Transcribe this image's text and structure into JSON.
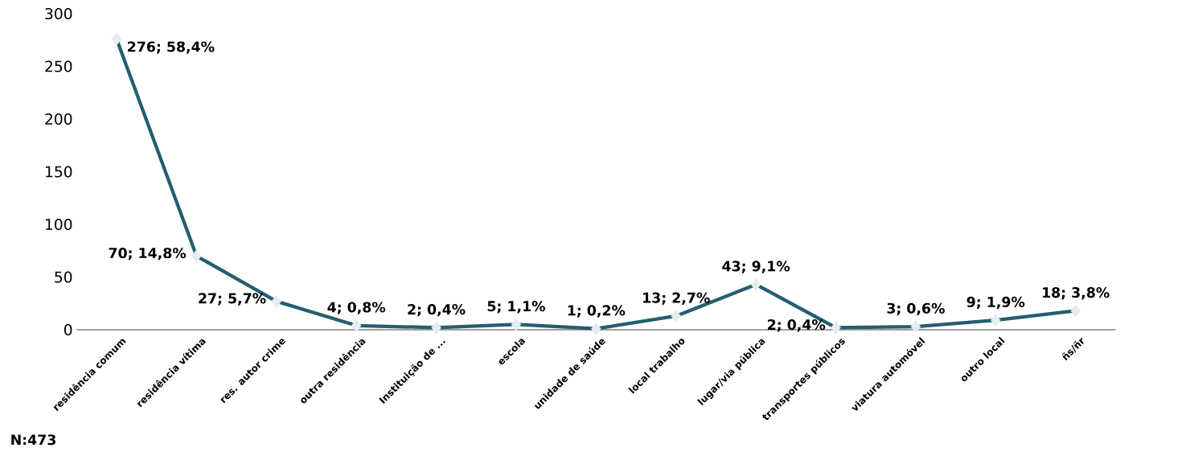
{
  "chart_data": {
    "type": "line",
    "categories": [
      "residência comum",
      "residência vítima",
      "res. autor crime",
      "outra residência",
      "Instituição de ...",
      "escola",
      "unidade de saúde",
      "local trabalho",
      "lugar/via  pública",
      "transportes públicos",
      "viatura  automóvel",
      "outro local",
      "ñs/ñr"
    ],
    "series": [
      {
        "color": "#255e6e",
        "values": [
          276,
          70,
          27,
          4,
          2,
          5,
          1,
          13,
          43,
          2,
          3,
          9,
          18
        ],
        "value_labels": [
          "276; 58,4%",
          "70; 14,8%",
          "27; 5,7%",
          "4; 0,8%",
          "2; 0,4%",
          "5; 1,1%",
          "1; 0,2%",
          "13; 2,7%",
          "43; 9,1%",
          "2; 0,4%",
          "3; 0,6%",
          "9; 1,9%",
          "18; 3,8%"
        ]
      }
    ],
    "ylim": [
      0,
      300
    ],
    "yticks": [
      0,
      50,
      100,
      150,
      200,
      250,
      300
    ],
    "marker": "diamond",
    "line_style": "solid",
    "annotations": [
      "N:473"
    ]
  }
}
